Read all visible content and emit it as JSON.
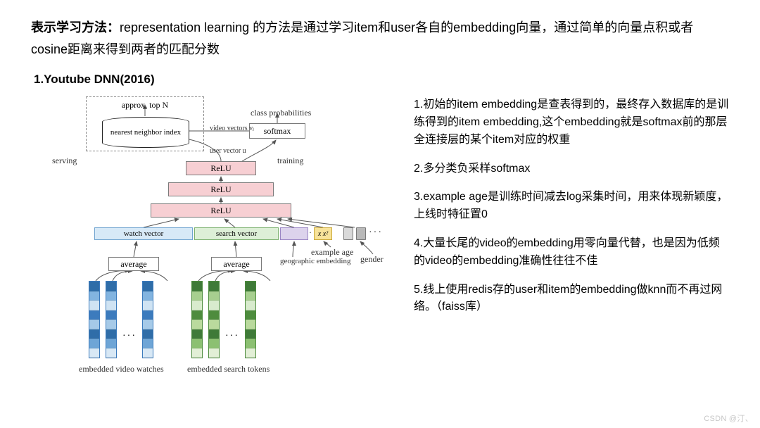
{
  "header": {
    "bold": "表示学习方法：",
    "rest": "representation learning 的方法是通过学习item和user各自的embedding向量，通过简单的向量点积或者cosine距离来得到两者的匹配分数"
  },
  "subtitle": "1.Youtube DNN(2016)",
  "diagram": {
    "approx_top": "approx. top N",
    "nn_index": "nearest neighbor index",
    "class_prob": "class probabilities",
    "softmax": "softmax",
    "relu": "ReLU",
    "watch_vector": "watch vector",
    "search_vector": "search vector",
    "example_age": "example age",
    "gender": "gender",
    "geo": "geographic embedding",
    "average": "average",
    "cap_video": "embedded video watches",
    "cap_search": "embedded search tokens",
    "serving": "serving",
    "training": "training",
    "video_vec": "video vectors vⱼ",
    "user_vec": "user vector u",
    "colors": {
      "relu_fill": "#f7cfd3",
      "relu_border": "#7a7a7a",
      "watch_fill": "#d7e9f7",
      "watch_border": "#6fa3cf",
      "search_fill": "#ddefd7",
      "search_border": "#7bb06e",
      "purple_fill": "#dcd3ec",
      "purple_border": "#9a86c4",
      "yellow_fill": "#f8e39a",
      "yellow_border": "#caa93a",
      "blue_shades": [
        "#2f6da8",
        "#82b4e0",
        "#cfe3f3",
        "#3c7bbd",
        "#a6cae8",
        "#2f6da8",
        "#6ea5d6",
        "#d8e8f5"
      ],
      "green_shades": [
        "#3f7a38",
        "#a7cf8f",
        "#d8ebcd",
        "#4e8c3e",
        "#bada9d",
        "#3f7a38",
        "#8cc072",
        "#e2efd6"
      ]
    }
  },
  "notes": {
    "p1": "1.初始的item embedding是查表得到的，最终存入数据库的是训练得到的item embedding,这个embedding就是softmax前的那层全连接层的某个item对应的权重",
    "p2": "2.多分类负采样softmax",
    "p3": "3.example age是训练时间减去log采集时间，用来体现新颖度，上线时特征置0",
    "p4": "4.大量长尾的video的embedding用零向量代替，也是因为低频的video的embedding准确性往往不佳",
    "p5": "5.线上使用redis存的user和item的embedding做knn而不再过网络。（faiss库）"
  },
  "watermark": "CSDN @汀、"
}
